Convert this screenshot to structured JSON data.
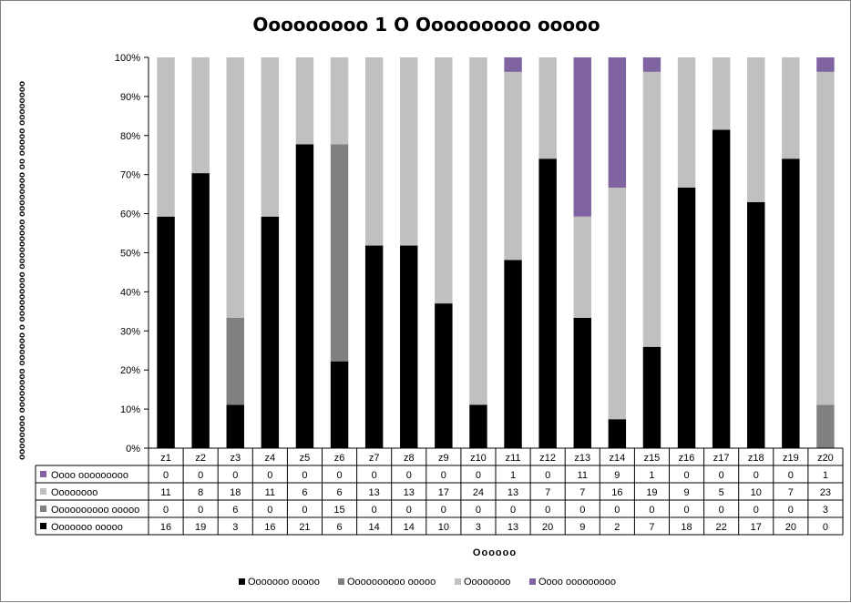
{
  "chart_data": {
    "type": "bar",
    "stacked": "percent",
    "title": "Ooooooooo 1 O Ooooooooo ooooo",
    "xlabel": "Oooooo",
    "ylabel": "oooooooo oooooooo oooooo o ooooooooo ooooooooo oooooooo oo ooooo oooooooo",
    "ylim": [
      0,
      100
    ],
    "yticks": [
      "0%",
      "10%",
      "20%",
      "30%",
      "40%",
      "50%",
      "60%",
      "70%",
      "80%",
      "90%",
      "100%"
    ],
    "grid": false,
    "legend": "bottom",
    "categories": [
      "z1",
      "z2",
      "z3",
      "z4",
      "z5",
      "z6",
      "z7",
      "z8",
      "z9",
      "z10",
      "z11",
      "z12",
      "z13",
      "z14",
      "z15",
      "z16",
      "z17",
      "z18",
      "z19",
      "z20"
    ],
    "series": [
      {
        "name": "Ooooooo ooooo",
        "color": "#000000",
        "values": [
          16,
          19,
          3,
          16,
          21,
          6,
          14,
          14,
          10,
          3,
          13,
          20,
          9,
          2,
          7,
          18,
          22,
          17,
          20,
          0
        ]
      },
      {
        "name": "Oooooooooo ooooo",
        "color": "#808080",
        "values": [
          0,
          0,
          6,
          0,
          0,
          15,
          0,
          0,
          0,
          0,
          0,
          0,
          0,
          0,
          0,
          0,
          0,
          0,
          0,
          3
        ]
      },
      {
        "name": "Oooooooo",
        "color": "#c0c0c0",
        "values": [
          11,
          8,
          18,
          11,
          6,
          6,
          13,
          13,
          17,
          24,
          13,
          7,
          7,
          16,
          19,
          9,
          5,
          10,
          7,
          23
        ]
      },
      {
        "name": "Oooo ooooooooo",
        "color": "#8064a2",
        "values": [
          0,
          0,
          0,
          0,
          0,
          0,
          0,
          0,
          0,
          0,
          1,
          0,
          11,
          9,
          1,
          0,
          0,
          0,
          0,
          1
        ]
      }
    ],
    "table_row_order": [
      3,
      2,
      1,
      0
    ],
    "legend_order": [
      0,
      1,
      2,
      3
    ]
  }
}
